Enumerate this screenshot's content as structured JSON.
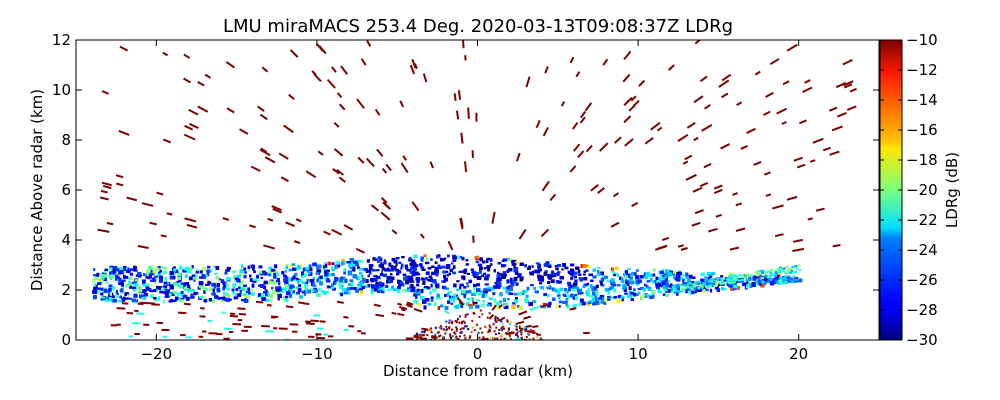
{
  "chart_data": {
    "type": "heatmap",
    "title": "LMU miraMACS 253.4 Deg. 2020-03-13T09:08:37Z  LDRg",
    "xlabel": "Distance from radar (km)",
    "ylabel": "Distance Above radar  (km)",
    "xlim": [
      -25,
      25
    ],
    "ylim": [
      0,
      12
    ],
    "xticks": [
      -20,
      -10,
      0,
      10,
      20
    ],
    "xtick_labels": [
      "−20",
      "−10",
      "0",
      "10",
      "20"
    ],
    "yticks": [
      0,
      2,
      4,
      6,
      8,
      10,
      12
    ],
    "ytick_labels": [
      "0",
      "2",
      "4",
      "6",
      "8",
      "10",
      "12"
    ],
    "colorbar": {
      "label": "LDRg (dB)",
      "range": [
        -30,
        -10
      ],
      "ticks": [
        -30,
        -28,
        -26,
        -24,
        -22,
        -20,
        -18,
        -16,
        -14,
        -12,
        -10
      ],
      "tick_labels": [
        "−30",
        "−28",
        "−26",
        "−24",
        "−22",
        "−20",
        "−18",
        "−16",
        "−14",
        "−12",
        "−10"
      ],
      "colormap": "jet"
    },
    "features": {
      "cloud_layer": {
        "height_km": [
          1.3,
          3.5
        ],
        "x_extent_km": [
          -24,
          20
        ],
        "ldr_db_typical": [
          -30,
          -22
        ]
      },
      "upper_speckles": {
        "height_km": [
          3.5,
          12
        ],
        "ldr_db": -10
      },
      "near_ground_clutter": {
        "x_extent_km": [
          -4,
          4
        ],
        "height_km": [
          0,
          1.3
        ]
      }
    }
  }
}
